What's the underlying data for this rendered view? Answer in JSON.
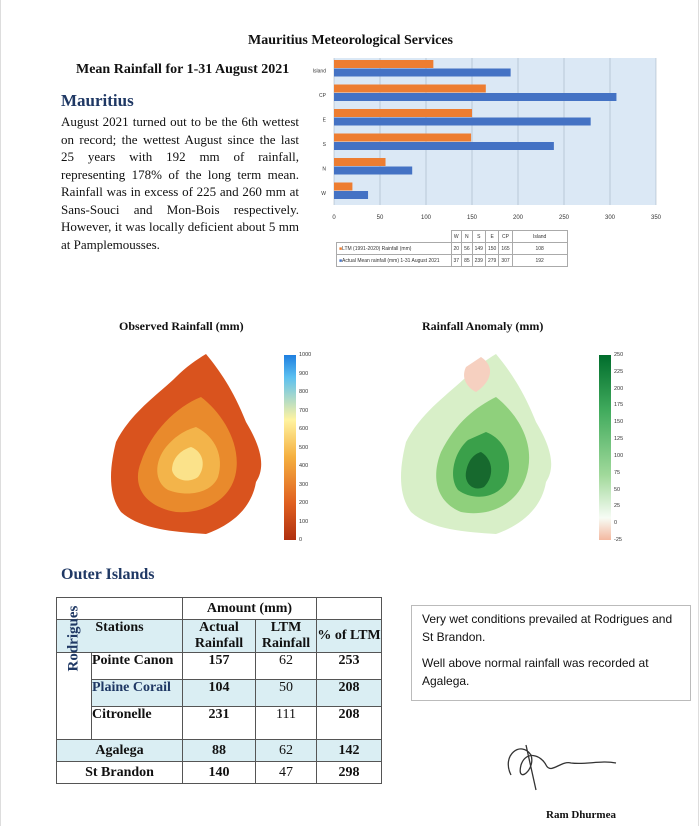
{
  "header": {
    "organisation": "Mauritius Meteorological Services",
    "subtitle": "Mean Rainfall for 1-31 August 2021"
  },
  "mauritius": {
    "heading": "Mauritius",
    "text": "August 2021 turned out to be the 6th wettest on record; the wettest August since the last 25 years with 192 mm of rainfall, representing 178% of the long term mean. Rainfall was in excess of 225 and 260 mm at Sans-Souci and Mon-Bois respectively. However, it was locally deficient about 5 mm at Pamplemousses."
  },
  "chart_data": {
    "type": "bar",
    "orientation": "horizontal",
    "categories": [
      "W",
      "N",
      "S",
      "E",
      "CP",
      "Island"
    ],
    "series": [
      {
        "name": "LTM (1991-2020) Rainfall (mm)",
        "color": "#ed7d31",
        "values": [
          20,
          56,
          149,
          150,
          165,
          108
        ]
      },
      {
        "name": "Actual Mean rainfall (mm) 1-31 August 2021",
        "color": "#4472c4",
        "values": [
          37,
          85,
          239,
          279,
          307,
          192
        ]
      }
    ],
    "xlim": [
      0,
      350
    ],
    "xticks": [
      "0",
      "50",
      "100",
      "150",
      "200",
      "250",
      "300",
      "350"
    ],
    "grid": true,
    "legend": "table-below"
  },
  "maps": {
    "observed": {
      "title": "Observed Rainfall (mm)",
      "legend": [
        "1000",
        "900",
        "800",
        "700",
        "600",
        "500",
        "400",
        "300",
        "200",
        "100",
        "0"
      ]
    },
    "anomaly": {
      "title": "Rainfall Anomaly (mm)",
      "legend": [
        "250",
        "225",
        "200",
        "175",
        "150",
        "125",
        "100",
        "75",
        "50",
        "25",
        "0",
        "-25"
      ]
    }
  },
  "outer": {
    "heading": "Outer Islands",
    "amount_header": "Amount (mm)",
    "cols": [
      "Stations",
      "Actual Rainfall",
      "LTM Rainfall",
      "% of LTM"
    ],
    "group": "Rodrigues",
    "rows": [
      {
        "station": "Pointe Canon",
        "actual": "157",
        "ltm": "62",
        "pct": "253"
      },
      {
        "station": "Plaine Corail",
        "actual": "104",
        "ltm": "50",
        "pct": "208"
      },
      {
        "station": "Citronelle",
        "actual": "231",
        "ltm": "111",
        "pct": "208"
      },
      {
        "station": "Agalega",
        "actual": "88",
        "ltm": "62",
        "pct": "142"
      },
      {
        "station": "St Brandon",
        "actual": "140",
        "ltm": "47",
        "pct": "298"
      }
    ]
  },
  "notes": [
    "Very wet conditions prevailed at Rodrigues and St Brandon.",
    "Well above normal rainfall was recorded at Agalega."
  ],
  "signatory": "Ram Dhurmea"
}
